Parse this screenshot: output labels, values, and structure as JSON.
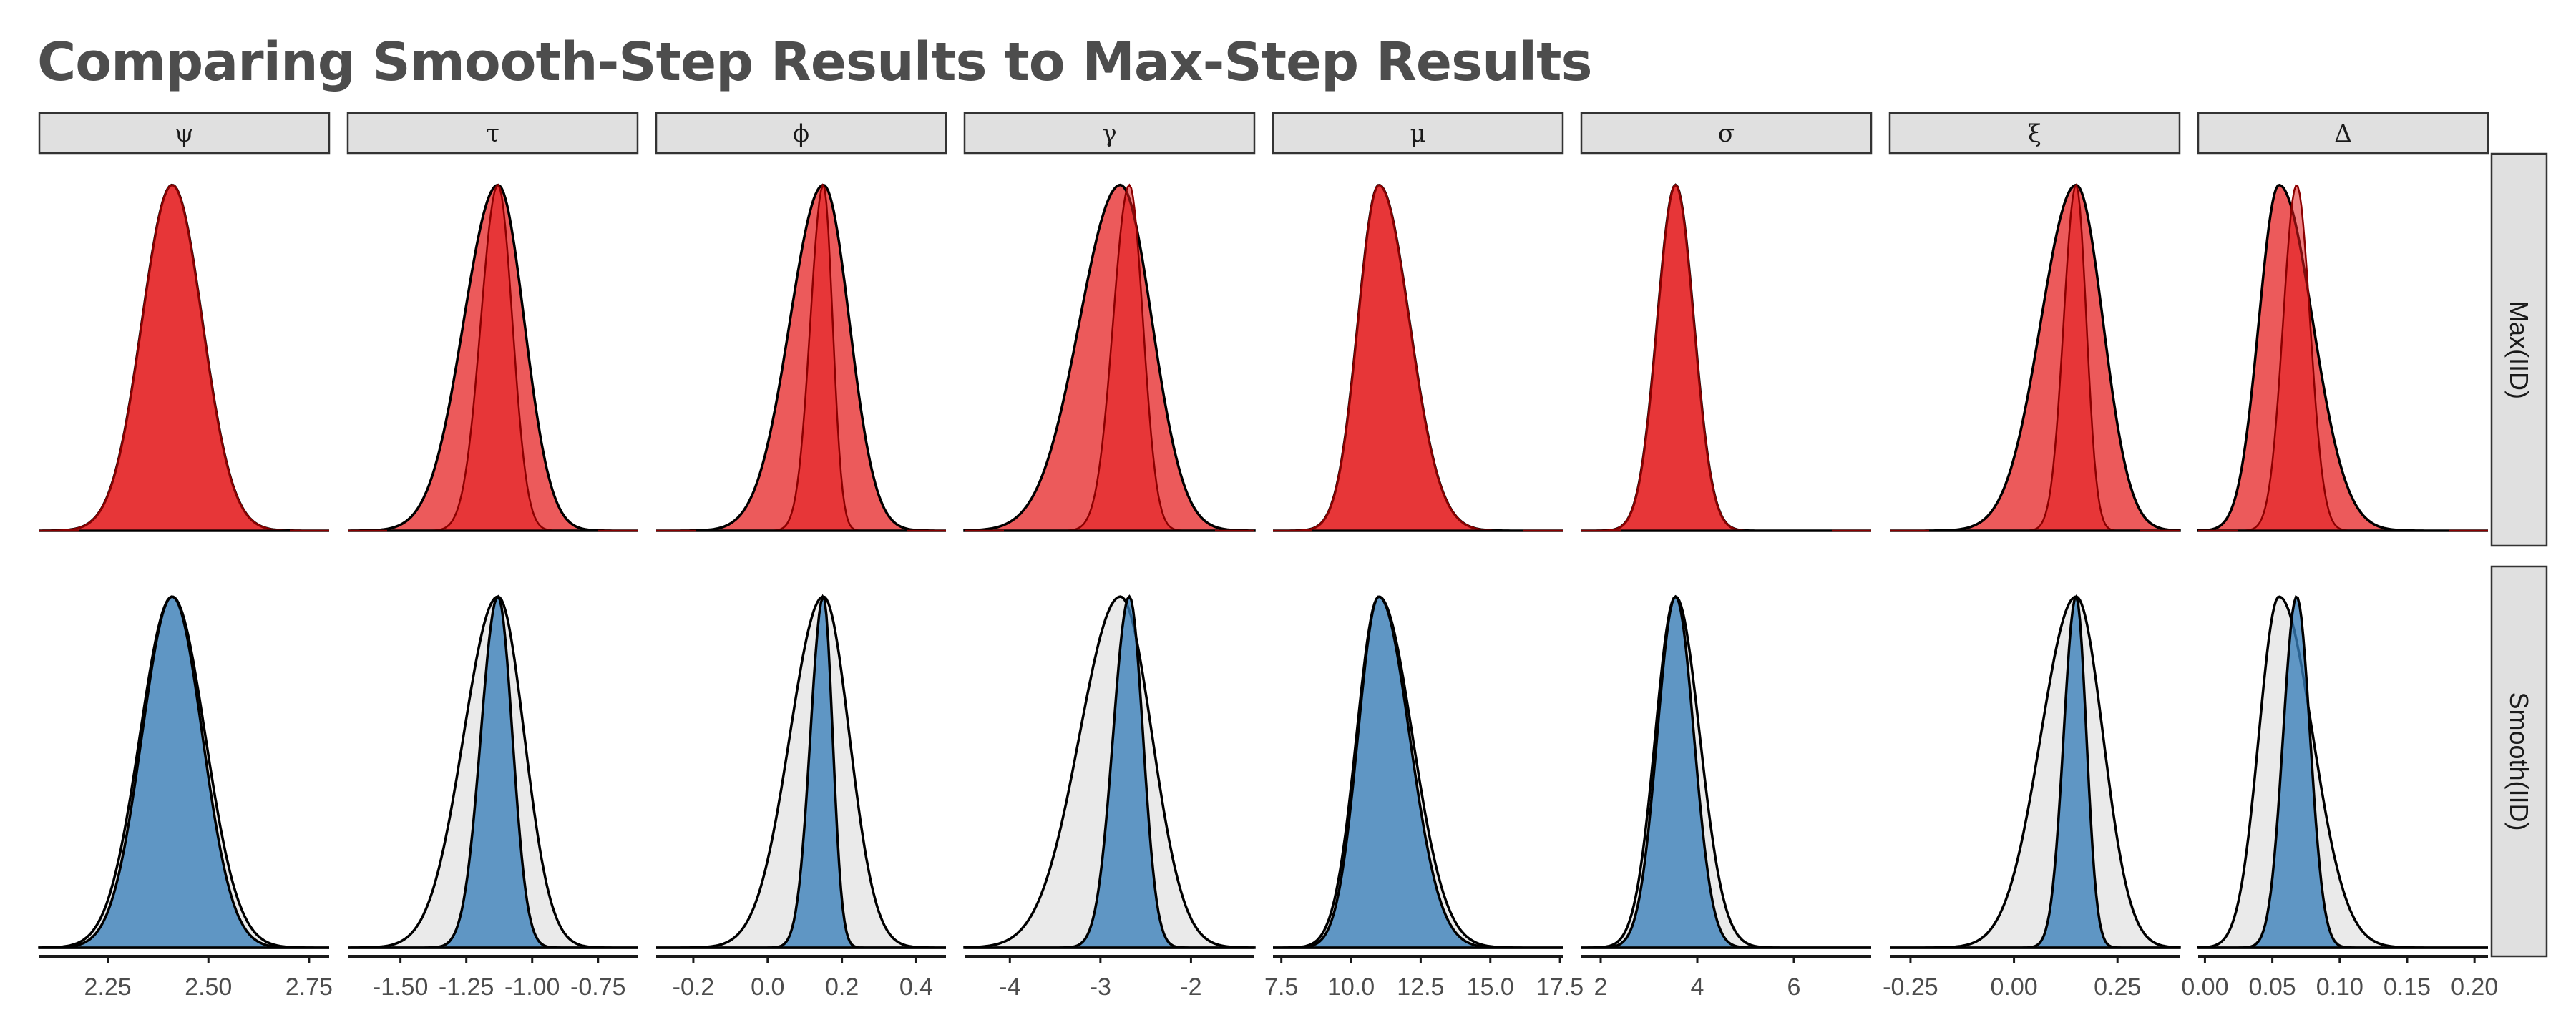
{
  "title": "Comparing Smooth-Step Results to Max-Step Results",
  "colors": {
    "max": "#e41a1c",
    "smooth": "#377eb8",
    "background_density": "#e6e6e6",
    "strip_fill": "#e0e0e0",
    "strip_border": "#333333",
    "outline": "#000000"
  },
  "row_labels": [
    "Max(IID)",
    "Smooth(IID)"
  ],
  "chart_data": [
    {
      "type": "area",
      "parameter": "ψ",
      "xlim": [
        2.08,
        2.8
      ],
      "ticks": [
        2.25,
        2.5,
        2.75
      ],
      "tick_labels": [
        "2.25",
        "2.50",
        "2.75"
      ],
      "max_iid": {
        "peak": 2.41,
        "sd_left": 0.075,
        "sd_right": 0.075
      },
      "smooth_iid": {
        "peak": 2.41,
        "sd_left": 0.075,
        "sd_right": 0.075
      },
      "smooth_iid_alt": {
        "peak": 2.41,
        "sd_left": 0.08,
        "sd_right": 0.082
      }
    },
    {
      "type": "area",
      "parameter": "τ",
      "xlim": [
        -1.7,
        -0.6
      ],
      "ticks": [
        -1.5,
        -1.25,
        -1.0,
        -0.75
      ],
      "tick_labels": [
        "-1.50",
        "-1.25",
        "-1.00",
        "-0.75"
      ],
      "max_iid": {
        "peak": -1.13,
        "sd_left": 0.13,
        "sd_right": 0.1
      },
      "smooth_iid": {
        "peak": -1.13,
        "sd_left": 0.065,
        "sd_right": 0.055
      },
      "smooth_iid_alt": {
        "peak": -1.13,
        "sd_left": 0.13,
        "sd_right": 0.1
      }
    },
    {
      "type": "area",
      "parameter": "ϕ",
      "xlim": [
        -0.3,
        0.48
      ],
      "ticks": [
        -0.2,
        0.0,
        0.2,
        0.4
      ],
      "tick_labels": [
        "-0.2",
        "0.0",
        "0.2",
        "0.4"
      ],
      "max_iid": {
        "peak": 0.15,
        "sd_left": 0.09,
        "sd_right": 0.07
      },
      "smooth_iid": {
        "peak": 0.15,
        "sd_left": 0.035,
        "sd_right": 0.025
      },
      "smooth_iid_alt": {
        "peak": 0.15,
        "sd_left": 0.09,
        "sd_right": 0.07
      }
    },
    {
      "type": "area",
      "parameter": "γ",
      "xlim": [
        -4.5,
        -1.3
      ],
      "ticks": [
        -4,
        -3,
        -2
      ],
      "tick_labels": [
        "-4",
        "-3",
        "-2"
      ],
      "max_iid": {
        "peak": -2.78,
        "sd_left": 0.45,
        "sd_right": 0.35
      },
      "smooth_iid": {
        "peak": -2.68,
        "sd_left": 0.18,
        "sd_right": 0.15
      },
      "smooth_iid_alt": {
        "peak": -2.78,
        "sd_left": 0.45,
        "sd_right": 0.35
      }
    },
    {
      "type": "area",
      "parameter": "μ",
      "xlim": [
        7.2,
        17.6
      ],
      "ticks": [
        7.5,
        10.0,
        12.5,
        15.0,
        17.5
      ],
      "tick_labels": [
        "7.5",
        "10.0",
        "12.5",
        "15.0",
        "17.5"
      ],
      "max_iid": {
        "peak": 11.0,
        "sd_left": 0.75,
        "sd_right": 1.1
      },
      "smooth_iid": {
        "peak": 11.0,
        "sd_left": 0.75,
        "sd_right": 1.1
      },
      "smooth_iid_alt": {
        "peak": 11.0,
        "sd_left": 0.8,
        "sd_right": 1.2
      }
    },
    {
      "type": "area",
      "parameter": "σ",
      "xlim": [
        1.6,
        7.6
      ],
      "ticks": [
        2,
        4,
        6
      ],
      "tick_labels": [
        "2",
        "4",
        "6"
      ],
      "max_iid": {
        "peak": 3.55,
        "sd_left": 0.38,
        "sd_right": 0.38
      },
      "smooth_iid": {
        "peak": 3.55,
        "sd_left": 0.38,
        "sd_right": 0.38
      },
      "smooth_iid_alt": {
        "peak": 3.55,
        "sd_left": 0.42,
        "sd_right": 0.5
      }
    },
    {
      "type": "area",
      "parameter": "ξ",
      "xlim": [
        -0.3,
        0.4
      ],
      "ticks": [
        -0.25,
        0.0,
        0.25
      ],
      "tick_labels": [
        "-0.25",
        "0.00",
        "0.25"
      ],
      "max_iid": {
        "peak": 0.15,
        "sd_left": 0.085,
        "sd_right": 0.065
      },
      "smooth_iid": {
        "peak": 0.15,
        "sd_left": 0.03,
        "sd_right": 0.025
      },
      "smooth_iid_alt": {
        "peak": 0.15,
        "sd_left": 0.085,
        "sd_right": 0.065
      }
    },
    {
      "type": "area",
      "parameter": "Δ",
      "xlim": [
        -0.005,
        0.21
      ],
      "ticks": [
        0.0,
        0.05,
        0.1,
        0.15,
        0.2
      ],
      "tick_labels": [
        "0.00",
        "0.05",
        "0.10",
        "0.15",
        "0.20"
      ],
      "max_iid": {
        "peak": 0.055,
        "sd_left": 0.015,
        "sd_right": 0.025
      },
      "smooth_iid": {
        "peak": 0.068,
        "sd_left": 0.01,
        "sd_right": 0.01
      },
      "smooth_iid_alt": {
        "peak": 0.055,
        "sd_left": 0.015,
        "sd_right": 0.025
      }
    }
  ]
}
